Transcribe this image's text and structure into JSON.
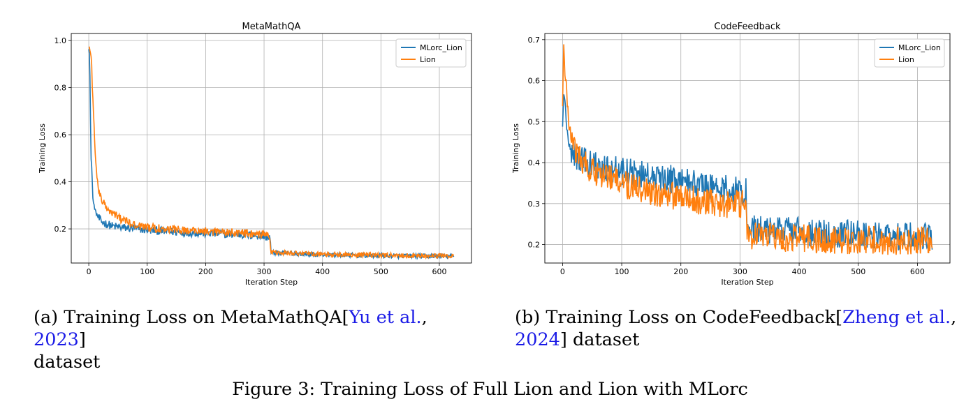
{
  "chart_data": [
    {
      "type": "line",
      "title": "MetaMathQA",
      "xlabel": "Iteration Step",
      "ylabel": "Training Loss",
      "xlim": [
        -30,
        655
      ],
      "ylim": [
        0.055,
        1.03
      ],
      "xticks": [
        0,
        100,
        200,
        300,
        400,
        500,
        600
      ],
      "yticks": [
        0.2,
        0.4,
        0.6,
        0.8,
        1.0
      ],
      "ytick_labels": [
        "0.2",
        "0.4",
        "0.6",
        "0.8",
        "1.0"
      ],
      "grid": true,
      "legend_position": "top-right",
      "steps": 625,
      "series": [
        {
          "name": "MLorc_Lion",
          "color": "#1f77b4",
          "values": [
            0.97,
            0.95,
            0.85,
            0.65,
            0.49,
            0.47,
            0.4,
            0.33,
            0.31,
            0.3,
            0.29,
            0.28,
            0.27,
            0.265,
            0.26,
            0.255,
            0.25,
            0.245,
            0.24,
            0.24,
            0.235,
            0.23,
            0.228,
            0.226,
            0.224,
            0.222,
            0.22,
            0.218,
            0.216,
            0.214,
            0.212,
            0.21,
            0.208,
            0.206,
            0.205,
            0.204,
            0.203,
            0.202,
            0.2,
            0.198,
            0.196,
            0.194,
            0.192,
            0.19,
            0.188,
            0.186,
            0.184,
            0.182,
            0.18,
            0.178,
            0.176,
            0.174,
            0.172,
            0.17,
            0.168,
            0.166,
            0.164,
            0.1,
            0.099,
            0.098,
            0.097,
            0.096,
            0.095,
            0.094,
            0.093,
            0.092,
            0.091,
            0.09,
            0.09,
            0.089,
            0.089,
            0.088,
            0.088,
            0.087,
            0.087,
            0.087,
            0.086,
            0.086,
            0.086,
            0.086,
            0.085,
            0.085,
            0.085,
            0.085,
            0.084,
            0.084,
            0.084,
            0.084,
            0.083,
            0.083,
            0.083
          ],
          "x": [
            0,
            1,
            2,
            3,
            4,
            5,
            6,
            7,
            8,
            9,
            10,
            11,
            12,
            13,
            14,
            15,
            16,
            17,
            18,
            19,
            20,
            22,
            24,
            26,
            28,
            30,
            32,
            34,
            36,
            38,
            40,
            45,
            50,
            55,
            60,
            65,
            70,
            75,
            80,
            90,
            100,
            110,
            120,
            130,
            140,
            160,
            180,
            200,
            220,
            240,
            260,
            275,
            285,
            295,
            300,
            305,
            310,
            312,
            315,
            320,
            330,
            340,
            350,
            360,
            370,
            380,
            390,
            400,
            410,
            420,
            430,
            440,
            450,
            460,
            470,
            480,
            490,
            500,
            510,
            520,
            530,
            540,
            550,
            560,
            570,
            580,
            590,
            600,
            610,
            620,
            625
          ]
        },
        {
          "name": "Lion",
          "color": "#ff7f0e",
          "values": [
            0.98,
            0.97,
            0.96,
            0.94,
            0.93,
            0.9,
            0.8,
            0.75,
            0.7,
            0.65,
            0.58,
            0.52,
            0.48,
            0.45,
            0.42,
            0.4,
            0.38,
            0.37,
            0.36,
            0.35,
            0.34,
            0.33,
            0.32,
            0.31,
            0.3,
            0.295,
            0.29,
            0.285,
            0.28,
            0.275,
            0.27,
            0.26,
            0.25,
            0.24,
            0.235,
            0.23,
            0.225,
            0.22,
            0.215,
            0.21,
            0.207,
            0.204,
            0.202,
            0.2,
            0.198,
            0.195,
            0.193,
            0.19,
            0.187,
            0.185,
            0.182,
            0.18,
            0.178,
            0.176,
            0.174,
            0.172,
            0.17,
            0.102,
            0.101,
            0.1,
            0.099,
            0.098,
            0.097,
            0.096,
            0.095,
            0.094,
            0.093,
            0.093,
            0.092,
            0.092,
            0.091,
            0.091,
            0.09,
            0.09,
            0.09,
            0.089,
            0.089,
            0.089,
            0.088,
            0.088,
            0.088,
            0.088,
            0.087,
            0.087,
            0.087,
            0.087,
            0.086,
            0.086,
            0.086,
            0.086,
            0.086
          ],
          "x": [
            0,
            1,
            2,
            3,
            4,
            5,
            6,
            7,
            8,
            9,
            10,
            11,
            12,
            13,
            14,
            15,
            16,
            17,
            18,
            19,
            20,
            22,
            24,
            26,
            28,
            30,
            32,
            34,
            36,
            38,
            40,
            45,
            50,
            55,
            60,
            65,
            70,
            75,
            80,
            90,
            100,
            110,
            120,
            130,
            140,
            160,
            180,
            200,
            220,
            240,
            260,
            275,
            285,
            295,
            300,
            305,
            310,
            312,
            315,
            320,
            330,
            340,
            350,
            360,
            370,
            380,
            390,
            400,
            410,
            420,
            430,
            440,
            450,
            460,
            470,
            480,
            490,
            500,
            510,
            520,
            530,
            540,
            550,
            560,
            570,
            580,
            590,
            600,
            610,
            620,
            625
          ]
        }
      ]
    },
    {
      "type": "line",
      "title": "CodeFeedback",
      "xlabel": "Iteration Step",
      "ylabel": "Training Loss",
      "xlim": [
        -30,
        655
      ],
      "ylim": [
        0.155,
        0.715
      ],
      "xticks": [
        0,
        100,
        200,
        300,
        400,
        500,
        600
      ],
      "yticks": [
        0.2,
        0.3,
        0.4,
        0.5,
        0.6,
        0.7
      ],
      "ytick_labels": [
        "0.2",
        "0.3",
        "0.4",
        "0.5",
        "0.6",
        "0.7"
      ],
      "grid": true,
      "legend_position": "top-right",
      "series": [
        {
          "name": "MLorc_Lion",
          "color": "#1f77b4",
          "x": [
            0,
            2,
            4,
            6,
            8,
            10,
            15,
            20,
            30,
            40,
            50,
            60,
            80,
            100,
            120,
            140,
            160,
            180,
            200,
            220,
            240,
            260,
            280,
            300,
            305,
            310,
            312,
            315,
            320,
            340,
            360,
            380,
            400,
            420,
            440,
            460,
            480,
            500,
            520,
            540,
            560,
            580,
            600,
            620,
            625
          ],
          "values": [
            0.5,
            0.58,
            0.55,
            0.5,
            0.48,
            0.45,
            0.43,
            0.42,
            0.41,
            0.4,
            0.395,
            0.39,
            0.385,
            0.38,
            0.375,
            0.37,
            0.365,
            0.36,
            0.355,
            0.35,
            0.345,
            0.34,
            0.335,
            0.33,
            0.33,
            0.33,
            0.25,
            0.245,
            0.24,
            0.238,
            0.236,
            0.234,
            0.232,
            0.23,
            0.228,
            0.226,
            0.225,
            0.224,
            0.223,
            0.222,
            0.221,
            0.22,
            0.22,
            0.22,
            0.215
          ]
        },
        {
          "name": "Lion",
          "color": "#ff7f0e",
          "x": [
            0,
            2,
            4,
            6,
            8,
            10,
            15,
            20,
            30,
            40,
            50,
            60,
            80,
            100,
            120,
            140,
            160,
            180,
            200,
            220,
            240,
            260,
            280,
            300,
            305,
            310,
            312,
            315,
            320,
            340,
            360,
            380,
            400,
            420,
            440,
            460,
            480,
            500,
            520,
            540,
            560,
            580,
            600,
            620,
            625
          ],
          "values": [
            0.55,
            0.68,
            0.62,
            0.6,
            0.55,
            0.5,
            0.46,
            0.43,
            0.41,
            0.39,
            0.38,
            0.37,
            0.36,
            0.35,
            0.34,
            0.33,
            0.325,
            0.32,
            0.315,
            0.31,
            0.305,
            0.3,
            0.3,
            0.3,
            0.3,
            0.3,
            0.23,
            0.225,
            0.222,
            0.22,
            0.218,
            0.216,
            0.215,
            0.214,
            0.213,
            0.212,
            0.212,
            0.211,
            0.211,
            0.21,
            0.21,
            0.21,
            0.21,
            0.21,
            0.205
          ]
        }
      ]
    }
  ],
  "captions": {
    "a": {
      "prefix": "(a) Training Loss on MetaMathQA[",
      "cite_author": "Yu et al.",
      "sep": ", ",
      "cite_year": "2023",
      "suffix": "]",
      "line2": "dataset"
    },
    "b": {
      "prefix": "(b) Training Loss on CodeFeedback[",
      "cite_author": "Zheng et al.",
      "sep": ",",
      "cite_year": "2024",
      "suffix": "] dataset"
    },
    "figure": "Figure 3: Training Loss of Full Lion and Lion with MLorc"
  }
}
